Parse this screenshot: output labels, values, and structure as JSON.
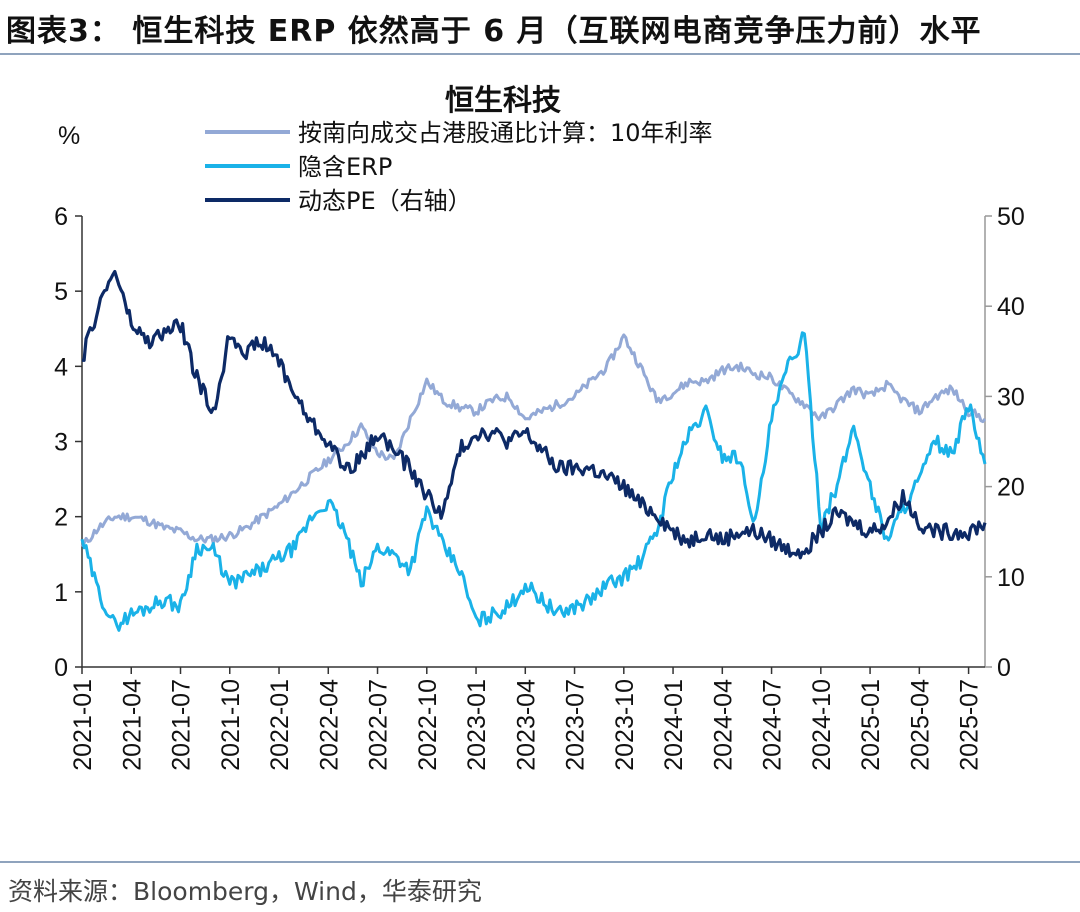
{
  "header": {
    "title": "图表3： 恒生科技 ERP 依然高于 6 月（互联网电商竞争压力前）水平"
  },
  "footer": {
    "source": "资料来源：Bloomberg，Wind，华泰研究"
  },
  "colors": {
    "rate": "#93a9d6",
    "erp": "#1ab2e8",
    "pe": "#0d2a66",
    "axis": "#333333",
    "right_axis": "#999999"
  },
  "chart_data": {
    "type": "line",
    "title": "恒生科技",
    "left_unit": "%",
    "ylim": [
      0,
      6
    ],
    "y2lim": [
      0,
      50
    ],
    "y_ticks": [
      "0",
      "1",
      "2",
      "3",
      "4",
      "5",
      "6"
    ],
    "y2_ticks": [
      "0",
      "10",
      "20",
      "30",
      "40",
      "50"
    ],
    "x_ticks": [
      "2021-01",
      "2021-04",
      "2021-07",
      "2021-10",
      "2022-01",
      "2022-04",
      "2022-07",
      "2022-10",
      "2023-01",
      "2023-04",
      "2023-07",
      "2023-10",
      "2024-01",
      "2024-04",
      "2024-07",
      "2024-10",
      "2025-01",
      "2025-04",
      "2025-07"
    ],
    "x": [
      "2021-01",
      "2021-02",
      "2021-03",
      "2021-04",
      "2021-05",
      "2021-06",
      "2021-07",
      "2021-08",
      "2021-09",
      "2021-10",
      "2021-11",
      "2021-12",
      "2022-01",
      "2022-02",
      "2022-03",
      "2022-04",
      "2022-05",
      "2022-06",
      "2022-07",
      "2022-08",
      "2022-09",
      "2022-10",
      "2022-11",
      "2022-12",
      "2023-01",
      "2023-02",
      "2023-03",
      "2023-04",
      "2023-05",
      "2023-06",
      "2023-07",
      "2023-08",
      "2023-09",
      "2023-10",
      "2023-11",
      "2023-12",
      "2024-01",
      "2024-02",
      "2024-03",
      "2024-04",
      "2024-05",
      "2024-06",
      "2024-07",
      "2024-08",
      "2024-09",
      "2024-10",
      "2024-11",
      "2024-12",
      "2025-01",
      "2025-02",
      "2025-03",
      "2025-04",
      "2025-05",
      "2025-06",
      "2025-07",
      "2025-08"
    ],
    "series": [
      {
        "name": "按南向成交占港股通比计算：10年利率",
        "axis": "left",
        "values": [
          1.6,
          1.85,
          2.0,
          2.0,
          1.95,
          1.85,
          1.8,
          1.7,
          1.7,
          1.75,
          1.85,
          2.0,
          2.15,
          2.35,
          2.55,
          2.75,
          2.95,
          3.2,
          2.85,
          2.75,
          3.3,
          3.8,
          3.55,
          3.45,
          3.4,
          3.55,
          3.6,
          3.3,
          3.4,
          3.5,
          3.6,
          3.8,
          4.0,
          4.4,
          4.0,
          3.55,
          3.65,
          3.8,
          3.8,
          3.95,
          4.0,
          3.9,
          3.85,
          3.65,
          3.5,
          3.3,
          3.5,
          3.7,
          3.6,
          3.75,
          3.55,
          3.4,
          3.6,
          3.7,
          3.4,
          3.3
        ]
      },
      {
        "name": "隐含ERP",
        "axis": "left",
        "values": [
          1.7,
          1.0,
          0.55,
          0.7,
          0.8,
          0.9,
          0.8,
          1.6,
          1.55,
          1.1,
          1.2,
          1.3,
          1.45,
          1.6,
          2.0,
          2.2,
          1.8,
          1.1,
          1.6,
          1.5,
          1.3,
          2.1,
          1.6,
          1.3,
          0.6,
          0.7,
          0.8,
          1.1,
          0.9,
          0.7,
          0.8,
          0.9,
          1.1,
          1.2,
          1.4,
          1.8,
          2.6,
          3.1,
          3.4,
          2.8,
          2.8,
          1.9,
          3.3,
          4.0,
          4.4,
          1.9,
          2.4,
          3.2,
          2.4,
          1.7,
          2.1,
          2.5,
          3.0,
          2.8,
          3.5,
          2.7
        ]
      },
      {
        "name": "动态PE（右轴）",
        "axis": "right",
        "values": [
          34,
          40,
          44,
          38,
          36,
          37,
          38,
          32,
          28,
          37,
          35,
          36,
          34,
          30,
          27,
          25,
          22,
          23,
          26,
          24,
          22,
          19,
          17,
          24,
          26,
          26,
          25,
          26,
          24,
          22,
          22,
          22,
          21,
          20,
          18,
          17,
          15,
          14,
          15,
          14,
          15,
          15,
          14,
          13,
          13,
          15,
          17,
          16,
          15,
          16,
          19,
          16,
          15,
          15,
          15,
          16
        ]
      }
    ]
  }
}
